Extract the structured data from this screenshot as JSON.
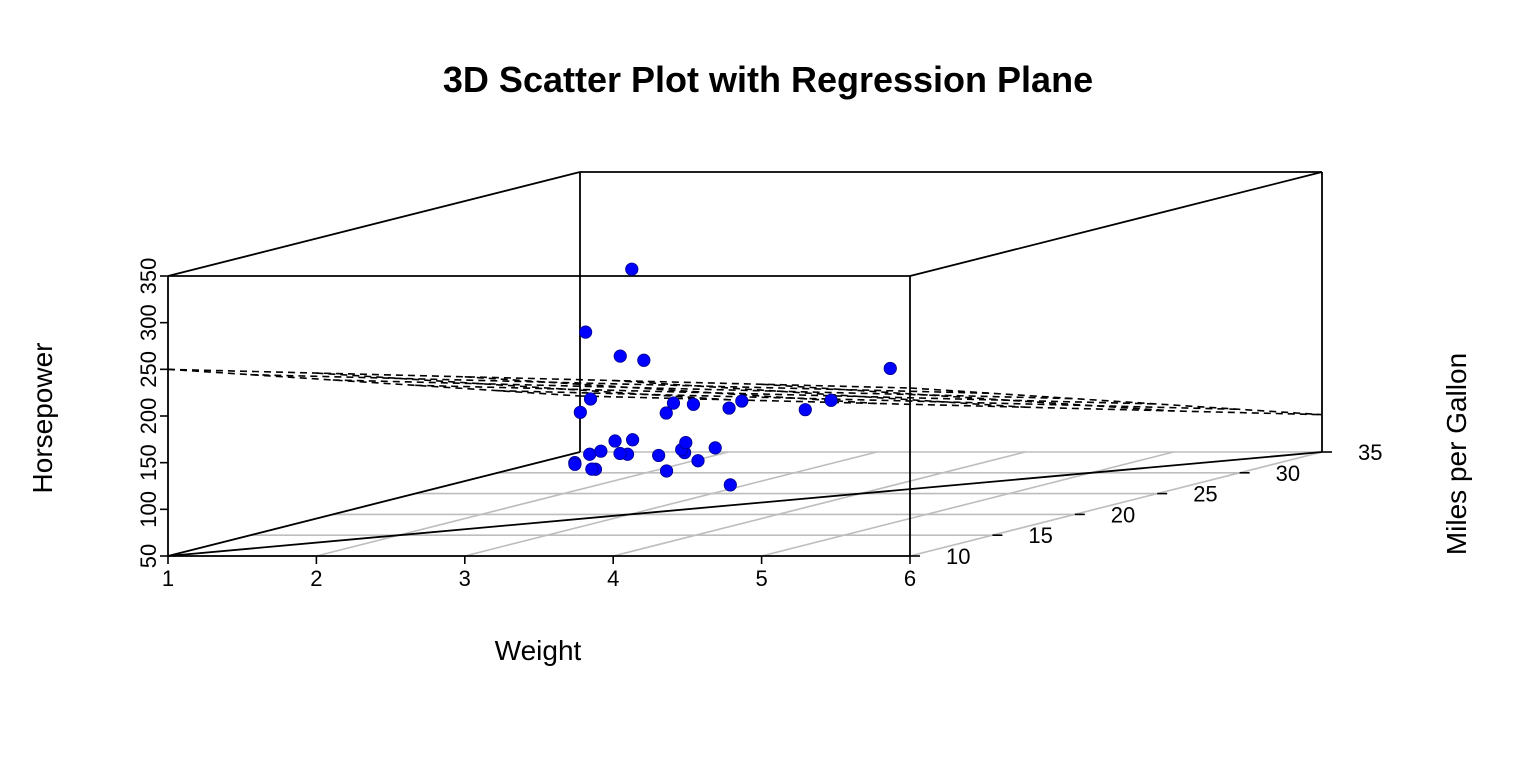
{
  "chart_data": {
    "type": "scatter",
    "title": "3D Scatter Plot with Regression Plane",
    "xlabel": "Weight",
    "ylabel": "Miles per Gallon",
    "zlabel": "Horsepower",
    "x_ticks": [
      "1",
      "2",
      "3",
      "4",
      "5",
      "6"
    ],
    "y_ticks": [
      "10",
      "15",
      "20",
      "25",
      "30",
      "35"
    ],
    "z_ticks": [
      "50",
      "100",
      "150",
      "200",
      "250",
      "300",
      "350"
    ],
    "xlim": [
      1,
      6
    ],
    "ylim": [
      10,
      35
    ],
    "zlim": [
      50,
      350
    ],
    "point_color": "#0000ff",
    "grid": "floor",
    "regression_plane": {
      "style": "dashed",
      "hp_at_weight_1_mpg_10": 250,
      "hp_at_weight_6_mpg_10": 230,
      "hp_at_weight_1_mpg_35": 110,
      "hp_at_weight_6_mpg_35": 90
    },
    "points": [
      {
        "x": 2.62,
        "y": 21.0,
        "z": 110
      },
      {
        "x": 2.875,
        "y": 21.0,
        "z": 110
      },
      {
        "x": 2.32,
        "y": 22.8,
        "z": 93
      },
      {
        "x": 3.215,
        "y": 21.4,
        "z": 110
      },
      {
        "x": 3.44,
        "y": 18.7,
        "z": 175
      },
      {
        "x": 3.46,
        "y": 18.1,
        "z": 105
      },
      {
        "x": 3.57,
        "y": 14.3,
        "z": 245
      },
      {
        "x": 3.19,
        "y": 24.4,
        "z": 62
      },
      {
        "x": 3.15,
        "y": 22.8,
        "z": 95
      },
      {
        "x": 3.44,
        "y": 19.2,
        "z": 123
      },
      {
        "x": 3.44,
        "y": 17.8,
        "z": 123
      },
      {
        "x": 4.07,
        "y": 16.4,
        "z": 180
      },
      {
        "x": 3.73,
        "y": 17.3,
        "z": 180
      },
      {
        "x": 3.78,
        "y": 15.2,
        "z": 180
      },
      {
        "x": 5.25,
        "y": 10.4,
        "z": 205
      },
      {
        "x": 5.424,
        "y": 10.4,
        "z": 215
      },
      {
        "x": 5.345,
        "y": 14.7,
        "z": 230
      },
      {
        "x": 2.2,
        "y": 32.4,
        "z": 66
      },
      {
        "x": 1.615,
        "y": 30.4,
        "z": 52
      },
      {
        "x": 1.835,
        "y": 33.9,
        "z": 65
      },
      {
        "x": 2.465,
        "y": 21.5,
        "z": 97
      },
      {
        "x": 3.52,
        "y": 15.5,
        "z": 150
      },
      {
        "x": 3.435,
        "y": 15.2,
        "z": 150
      },
      {
        "x": 3.84,
        "y": 13.3,
        "z": 245
      },
      {
        "x": 3.845,
        "y": 19.2,
        "z": 175
      },
      {
        "x": 1.935,
        "y": 27.3,
        "z": 66
      },
      {
        "x": 2.14,
        "y": 26.0,
        "z": 91
      },
      {
        "x": 1.513,
        "y": 30.4,
        "z": 113
      },
      {
        "x": 3.17,
        "y": 15.8,
        "z": 264
      },
      {
        "x": 2.77,
        "y": 19.7,
        "z": 175
      },
      {
        "x": 3.57,
        "y": 15.0,
        "z": 335
      },
      {
        "x": 2.78,
        "y": 21.4,
        "z": 109
      }
    ]
  }
}
